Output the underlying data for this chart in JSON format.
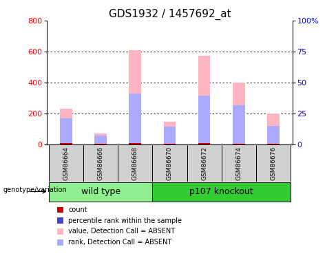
{
  "title": "GDS1932 / 1457692_at",
  "samples": [
    "GSM86664",
    "GSM86666",
    "GSM86668",
    "GSM86670",
    "GSM86672",
    "GSM86674",
    "GSM86676"
  ],
  "value_absent": [
    230,
    70,
    610,
    145,
    575,
    400,
    200
  ],
  "rank_absent": [
    170,
    60,
    330,
    115,
    315,
    255,
    120
  ],
  "count_red": [
    8,
    5,
    8,
    5,
    8,
    5,
    5
  ],
  "ylim_left": [
    0,
    800
  ],
  "ylim_right": [
    0,
    100
  ],
  "yticks_left": [
    0,
    200,
    400,
    600,
    800
  ],
  "yticks_right": [
    0,
    25,
    50,
    75,
    100
  ],
  "yticklabels_right": [
    "0",
    "25",
    "50",
    "75",
    "100%"
  ],
  "groups": [
    {
      "label": "wild type",
      "indices": [
        0,
        1,
        2
      ],
      "color": "#90ee90"
    },
    {
      "label": "p107 knockout",
      "indices": [
        3,
        4,
        5,
        6
      ],
      "color": "#33cc33"
    }
  ],
  "bar_width": 0.35,
  "pink_color": "#ffb6c1",
  "blue_color": "#aaaaff",
  "red_color": "#cc0000",
  "title_fontsize": 11,
  "tick_fontsize": 8,
  "group_label_fontsize": 9,
  "legend_items": [
    {
      "color": "#cc0000",
      "label": "count"
    },
    {
      "color": "#4444cc",
      "label": "percentile rank within the sample"
    },
    {
      "color": "#ffb6c1",
      "label": "value, Detection Call = ABSENT"
    },
    {
      "color": "#aaaaff",
      "label": "rank, Detection Call = ABSENT"
    }
  ]
}
